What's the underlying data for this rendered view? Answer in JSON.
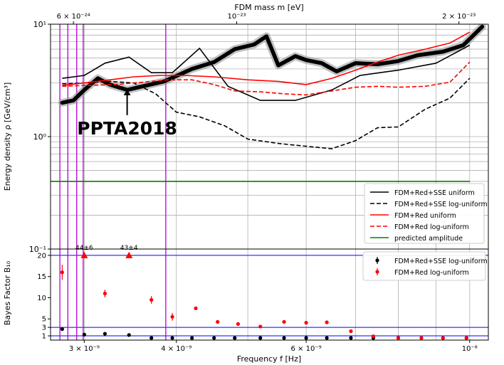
{
  "chart_data": [
    {
      "type": "line",
      "panel": "energy-density",
      "xscale": "log",
      "yscale": "log",
      "xlim": [
        2.7e-09,
        1.06e-08
      ],
      "ylim": [
        0.1,
        10
      ],
      "xlabel": "Frequency f [Hz]",
      "ylabel": "Energy density ρ [GeV/cm³]",
      "top_axis_label": "FDM mass m [eV]",
      "top_ticks": [
        {
          "f": 2.9e-09,
          "label": "6 × 10⁻²⁴"
        },
        {
          "f": 4.83e-09,
          "label": "10⁻²³"
        },
        {
          "f": 9.67e-09,
          "label": "2 × 10⁻²³"
        }
      ],
      "yticks": [
        {
          "v": 0.1,
          "label": "10⁻¹"
        },
        {
          "v": 1,
          "label": "10⁰"
        },
        {
          "v": 10,
          "label": "10¹"
        }
      ],
      "xticks": [
        {
          "v": 3e-09,
          "label": "3 × 10⁻⁹"
        },
        {
          "v": 4e-09,
          "label": "4 × 10⁻⁹"
        },
        {
          "v": 6e-09,
          "label": "6 × 10⁻⁹"
        },
        {
          "v": 1e-08,
          "label": "10⁻⁸"
        }
      ],
      "grid": true,
      "legend_position": "lower-right",
      "vertical_lines": [
        2.78e-09,
        2.85e-09,
        2.93e-09,
        2.99e-09,
        3.87e-09
      ],
      "annotation": {
        "text": "PPTA2018",
        "points_to": [
          3.43e-09,
          2.7
        ]
      },
      "ppta_curve": {
        "x": [
          2.8e-09,
          2.9e-09,
          3e-09,
          3.13e-09,
          3.25e-09,
          3.43e-09,
          3.6e-09,
          3.85e-09,
          4.2e-09,
          4.5e-09,
          4.8e-09,
          5.1e-09,
          5.3e-09,
          5.5e-09,
          5.8e-09,
          6e-09,
          6.3e-09,
          6.6e-09,
          7e-09,
          7.5e-09,
          8e-09,
          8.5e-09,
          9.2e-09,
          9.8e-09,
          1.04e-08
        ],
        "y": [
          2.0,
          2.1,
          2.6,
          3.3,
          2.9,
          2.6,
          2.8,
          3.1,
          4.0,
          4.6,
          6.0,
          6.6,
          7.8,
          4.3,
          5.2,
          4.8,
          4.5,
          3.8,
          4.5,
          4.4,
          4.7,
          5.3,
          5.7,
          6.5,
          9.5
        ]
      },
      "series": [
        {
          "name": "FDM+Red+SSE uniform",
          "color": "#000000",
          "dash": "solid",
          "x": [
            2.8e-09,
            3e-09,
            3.2e-09,
            3.45e-09,
            3.7e-09,
            3.95e-09,
            4.3e-09,
            4.7e-09,
            5.2e-09,
            5.8e-09,
            6.5e-09,
            7.1e-09,
            8e-09,
            9e-09,
            1e-08
          ],
          "y": [
            3.3,
            3.5,
            4.5,
            5.1,
            3.7,
            3.7,
            6.1,
            2.8,
            2.1,
            2.1,
            2.6,
            3.5,
            3.9,
            4.5,
            6.5
          ]
        },
        {
          "name": "FDM+Red+SSE log-uniform",
          "color": "#000000",
          "dash": "dashed",
          "x": [
            2.8e-09,
            3e-09,
            3.25e-09,
            3.5e-09,
            3.75e-09,
            4e-09,
            4.3e-09,
            4.65e-09,
            5e-09,
            5.5e-09,
            6e-09,
            6.5e-09,
            7e-09,
            7.5e-09,
            8e-09,
            8.7e-09,
            9.4e-09,
            1e-08
          ],
          "y": [
            2.95,
            3.0,
            3.1,
            3.0,
            2.4,
            1.65,
            1.5,
            1.25,
            0.95,
            0.87,
            0.82,
            0.78,
            0.92,
            1.2,
            1.22,
            1.75,
            2.2,
            3.3
          ]
        },
        {
          "name": "FDM+Red uniform",
          "color": "#ff0000",
          "dash": "solid",
          "x": [
            2.8e-09,
            3e-09,
            3.25e-09,
            3.5e-09,
            3.8e-09,
            4.1e-09,
            4.5e-09,
            5e-09,
            5.5e-09,
            6e-09,
            6.5e-09,
            7e-09,
            7.5e-09,
            8e-09,
            8.7e-09,
            9.4e-09,
            1e-08
          ],
          "y": [
            2.85,
            3.0,
            3.2,
            3.4,
            3.5,
            3.5,
            3.4,
            3.2,
            3.1,
            2.9,
            3.3,
            3.9,
            4.6,
            5.3,
            6.0,
            6.8,
            8.5
          ]
        },
        {
          "name": "FDM+Red log-uniform",
          "color": "#ff0000",
          "dash": "dashed",
          "x": [
            2.8e-09,
            3e-09,
            3.3e-09,
            3.6e-09,
            3.9e-09,
            4.2e-09,
            4.5e-09,
            4.8e-09,
            5.2e-09,
            5.6e-09,
            6e-09,
            6.5e-09,
            7e-09,
            7.5e-09,
            8e-09,
            8.7e-09,
            9.4e-09,
            1e-08
          ],
          "y": [
            2.8,
            2.85,
            2.9,
            3.05,
            3.2,
            3.2,
            2.9,
            2.55,
            2.5,
            2.4,
            2.35,
            2.55,
            2.75,
            2.8,
            2.75,
            2.8,
            3.05,
            4.6
          ]
        },
        {
          "name": "predicted amplitude",
          "color": "#008000",
          "dash": "solid",
          "x": [
            2.7e-09,
            1e-08
          ],
          "y": [
            0.4,
            0.4
          ]
        }
      ]
    },
    {
      "type": "scatter",
      "panel": "bayes-factor",
      "xscale": "log",
      "xlim": [
        2.7e-09,
        1.06e-08
      ],
      "ylim": [
        0,
        21.5
      ],
      "xlabel": "Frequency f [Hz]",
      "ylabel": "Bayes Factor B₁₀",
      "yticks": [
        1,
        3,
        5,
        10,
        15,
        20
      ],
      "reference_lines": [
        1,
        3,
        20
      ],
      "legend_position": "upper-right",
      "series": [
        {
          "name": "FDM+Red+SSE log-uniform",
          "color": "#000000",
          "x": [
            2.8e-09,
            3e-09,
            3.2e-09,
            3.45e-09,
            3.7e-09,
            3.95e-09,
            4.2e-09,
            4.5e-09,
            4.8e-09,
            5.2e-09,
            5.6e-09,
            6e-09,
            6.4e-09,
            6.9e-09,
            7.4e-09,
            8e-09,
            8.6e-09,
            9.2e-09,
            9.9e-09
          ],
          "y": [
            2.6,
            1.3,
            1.5,
            1.2,
            0.5,
            0.5,
            0.5,
            0.5,
            0.5,
            0.5,
            0.5,
            0.5,
            0.5,
            0.5,
            0.5,
            0.5,
            0.5,
            0.5,
            0.5
          ]
        },
        {
          "name": "FDM+Red log-uniform",
          "color": "#ff0000",
          "x": [
            2.8e-09,
            3.2e-09,
            3.7e-09,
            3.95e-09,
            4.25e-09,
            4.55e-09,
            4.85e-09,
            5.2e-09,
            5.6e-09,
            6e-09,
            6.4e-09,
            6.9e-09,
            7.4e-09,
            8e-09,
            8.6e-09,
            9.2e-09,
            9.9e-09
          ],
          "y": [
            16.0,
            11.0,
            9.5,
            5.5,
            7.5,
            4.3,
            3.8,
            3.2,
            4.3,
            4.1,
            4.2,
            2.1,
            0.9,
            0.5,
            0.5,
            0.5,
            0.5
          ],
          "yerr": [
            1.8,
            0.9,
            0.9,
            0.9,
            0.4,
            0.3,
            0.3,
            0.2,
            0.3,
            0.3,
            0.3,
            0.3,
            0.2,
            0.1,
            0.1,
            0.1,
            0.1
          ]
        }
      ],
      "lower_bound_markers": [
        {
          "x": 3e-09,
          "y": 20,
          "label": "44±6"
        },
        {
          "x": 3.45e-09,
          "y": 20,
          "label": "43±4"
        }
      ]
    }
  ]
}
